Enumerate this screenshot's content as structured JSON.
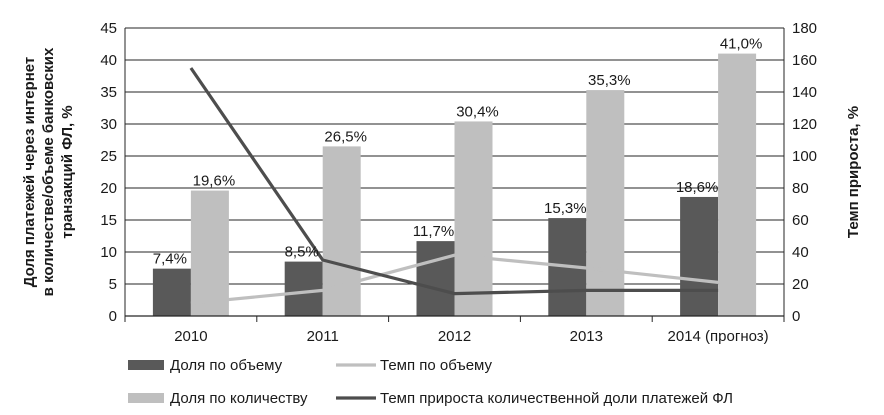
{
  "chart_data": {
    "type": "bar",
    "categories": [
      "2010",
      "2011",
      "2012",
      "2013",
      "2014 (прогноз)"
    ],
    "ylabel": [
      "Доля платежей через интернет",
      "в количестве/объеме банковских",
      "транзакций ФЛ, %"
    ],
    "y2label": "Темп прироста, %",
    "ylim": [
      0,
      45
    ],
    "y2lim": [
      0,
      180
    ],
    "yticks": [
      0,
      5,
      10,
      15,
      20,
      25,
      30,
      35,
      40,
      45
    ],
    "y2ticks": [
      0,
      20,
      40,
      60,
      80,
      100,
      120,
      140,
      160,
      180
    ],
    "grid": true,
    "legend_position": "bottom",
    "series": [
      {
        "name": "Доля по объему",
        "kind": "bar",
        "axis": "left",
        "color": "#595959",
        "values": [
          7.4,
          8.5,
          11.7,
          15.3,
          18.6
        ],
        "labels": [
          "7,4%",
          "8,5%",
          "11,7%",
          "15,3%",
          "18,6%"
        ]
      },
      {
        "name": "Доля по количеству",
        "kind": "bar",
        "axis": "left",
        "color": "#bfbfbf",
        "values": [
          19.6,
          26.5,
          30.4,
          35.3,
          41.0
        ],
        "labels": [
          "19,6%",
          "26,5%",
          "30,4%",
          "35,3%",
          "41,0%"
        ]
      },
      {
        "name": "Темп по объему",
        "kind": "line",
        "axis": "right",
        "color": "#bfbfbf",
        "values": [
          8,
          16,
          38,
          30,
          21
        ]
      },
      {
        "name": "Темп прироста количественной доли платежей ФЛ",
        "kind": "line",
        "axis": "right",
        "color": "#4d4d4d",
        "values": [
          155,
          35,
          14,
          16,
          16
        ]
      }
    ]
  }
}
